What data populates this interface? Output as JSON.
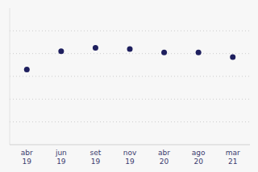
{
  "chart_data": {
    "type": "scatter",
    "categories": [
      "abr\n19",
      "jun\n19",
      "set\n19",
      "nov\n19",
      "abr\n20",
      "ago\n20",
      "mar\n21"
    ],
    "values": [
      3.3,
      4.1,
      4.25,
      4.2,
      4.05,
      4.05,
      3.85
    ],
    "color": "#1e1f5e",
    "ylim": [
      0,
      6
    ],
    "yticks": [
      1,
      2,
      3,
      4,
      5
    ],
    "grid": true,
    "tick_labels": "x"
  }
}
